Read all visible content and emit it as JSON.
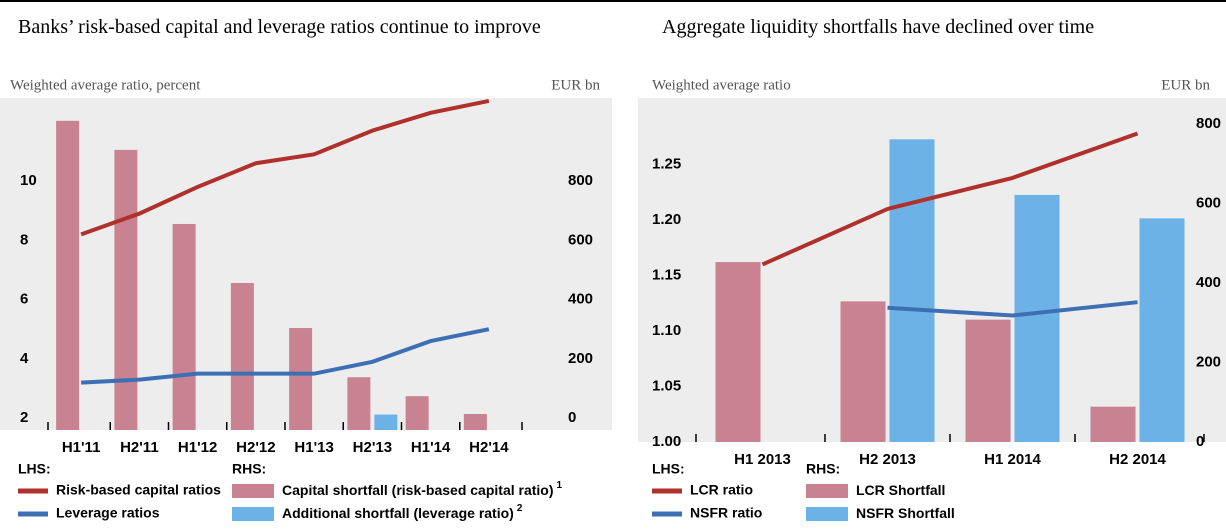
{
  "chart_data": [
    {
      "type": "bar",
      "title": "Banks’ risk-based capital and leverage ratios continue to improve",
      "y_label": "Weighted average ratio, percent",
      "y2_label": "EUR bn",
      "categories": [
        "H1'11",
        "H2'11",
        "H1'12",
        "H2'12",
        "H1'13",
        "H2'13",
        "H1'14",
        "H2'14"
      ],
      "ylim": [
        1.6,
        12.8
      ],
      "yticks": [
        2,
        4,
        6,
        8,
        10
      ],
      "y2lim": [
        -40,
        1080
      ],
      "y2ticks": [
        0,
        200,
        400,
        600,
        800
      ],
      "legend_titles": [
        "LHS:",
        "RHS:"
      ],
      "series": [
        {
          "name": "Risk-based capital ratios",
          "type": "line",
          "color": "#b0302c",
          "values": [
            8.2,
            8.9,
            9.8,
            10.6,
            10.9,
            11.7,
            12.3,
            12.7
          ]
        },
        {
          "name": "Leverage ratios",
          "type": "line",
          "color": "#3d6fb4",
          "values": [
            3.2,
            3.3,
            3.5,
            3.5,
            3.5,
            3.9,
            4.6,
            5.0
          ]
        },
        {
          "name": "Capital shortfall (risk-based capital ratio)",
          "footnote": "1",
          "type": "bar",
          "axis": "y2",
          "color": "#c98291",
          "values": [
            1003,
            905,
            655,
            456,
            304,
            138,
            74,
            14
          ]
        },
        {
          "name": "Additional shortfall (leverage ratio)",
          "footnote": "2",
          "type": "bar",
          "axis": "y2",
          "color": "#6cb2e6",
          "values": [
            null,
            null,
            null,
            null,
            null,
            12,
            null,
            null
          ]
        }
      ]
    },
    {
      "type": "bar",
      "title": "Aggregate liquidity shortfalls have declined over time",
      "y_label": "Weighted average ratio",
      "y2_label": "EUR bn",
      "categories": [
        "H1 2013",
        "H2 2013",
        "H1 2014",
        "H2 2014"
      ],
      "ylim": [
        1.0,
        1.31
      ],
      "yticks": [
        {
          "value": 1.0,
          "label": "1.00"
        },
        1.05,
        {
          "value": 1.1,
          "label": "1.10"
        },
        1.15,
        {
          "value": 1.2,
          "label": "1.20"
        },
        1.25
      ],
      "y2lim": [
        0,
        866
      ],
      "y2ticks": [
        0,
        200,
        400,
        600,
        800
      ],
      "legend_titles": [
        "LHS:",
        "RHS:"
      ],
      "series": [
        {
          "name": "LCR ratio",
          "type": "line",
          "color": "#b0302c",
          "values": [
            1.16,
            1.21,
            1.238,
            1.278
          ]
        },
        {
          "name": "NSFR ratio",
          "type": "line",
          "color": "#3d6fb4",
          "values": [
            null,
            1.121,
            1.114,
            1.126
          ]
        },
        {
          "name": "LCR Shortfall",
          "type": "bar",
          "axis": "y2",
          "color": "#c98291",
          "values": [
            453,
            354,
            308,
            89
          ]
        },
        {
          "name": "NSFR Shortfall",
          "type": "bar",
          "axis": "y2",
          "color": "#6cb2e6",
          "values": [
            null,
            762,
            622,
            563
          ]
        }
      ]
    }
  ]
}
